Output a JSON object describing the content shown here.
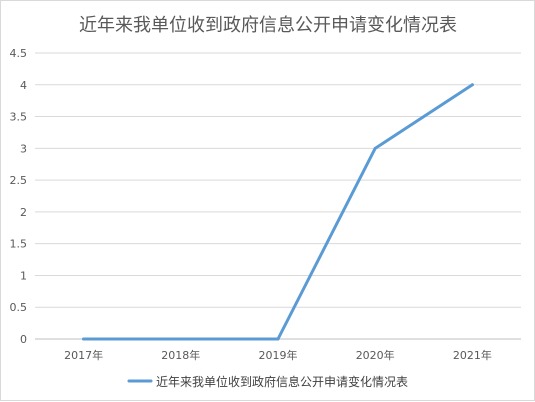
{
  "chart_data": {
    "type": "line",
    "title": "近年来我单位收到政府信息公开申请变化情况表",
    "categories": [
      "2017年",
      "2018年",
      "2019年",
      "2020年",
      "2021年"
    ],
    "series": [
      {
        "name": "近年来我单位收到政府信息公开申请变化情况表",
        "values": [
          0,
          0,
          0,
          3,
          4
        ],
        "color": "#5b9bd5"
      }
    ],
    "yticks": [
      "0",
      "0.5",
      "1",
      "1.5",
      "2",
      "2.5",
      "3",
      "3.5",
      "4",
      "4.5"
    ],
    "ylim": [
      0,
      4.5
    ],
    "grid": true,
    "legend": "bottom"
  }
}
